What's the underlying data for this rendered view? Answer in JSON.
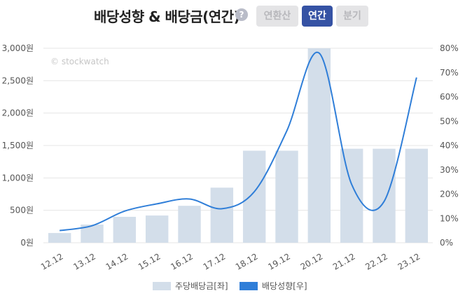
{
  "header": {
    "title": "배당성향 & 배당금(연간)",
    "help_icon": "?",
    "tabs": [
      {
        "label": "연환산",
        "active": false
      },
      {
        "label": "연간",
        "active": true
      },
      {
        "label": "분기",
        "active": false
      }
    ]
  },
  "watermark": "© stockwatch",
  "colors": {
    "bar": "#d3deea",
    "line": "#2f7ed8",
    "tab_active": "#3552a4",
    "tab_inactive": "#e4e4e6",
    "gridline": "#e6e6e6"
  },
  "chart_data": {
    "type": "bar",
    "categories": [
      "12.12",
      "13.12",
      "14.12",
      "15.12",
      "16.12",
      "17.12",
      "18.12",
      "19.12",
      "20.12",
      "21.12",
      "22.12",
      "23.12"
    ],
    "series": [
      {
        "name": "주당배당금[좌]",
        "type": "bar",
        "axis": "left",
        "values": [
          150,
          280,
          400,
          420,
          570,
          850,
          1420,
          1420,
          3000,
          1450,
          1450,
          1450
        ]
      },
      {
        "name": "배당성향[우]",
        "type": "line",
        "axis": "right",
        "values": [
          5,
          7,
          13,
          16,
          18,
          14,
          21,
          46,
          78,
          24,
          17,
          68
        ]
      }
    ],
    "yaxis_left": {
      "min": 0,
      "max": 3000,
      "ticks": [
        "0원",
        "500원",
        "1,000원",
        "1,500원",
        "2,000원",
        "2,500원",
        "3,000원"
      ]
    },
    "yaxis_right": {
      "min": 0,
      "max": 80,
      "ticks": [
        "0%",
        "10%",
        "20%",
        "30%",
        "40%",
        "50%",
        "60%",
        "70%",
        "80%"
      ]
    },
    "grid": true,
    "legend_position": "bottom-center"
  }
}
